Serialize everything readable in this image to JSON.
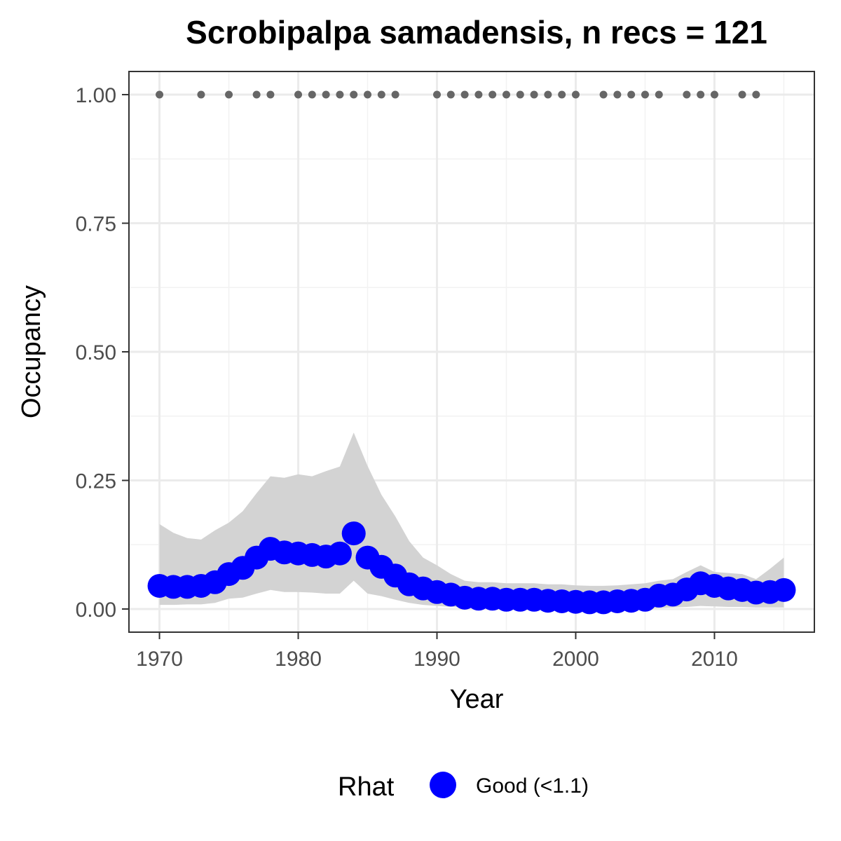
{
  "chart_data": {
    "type": "line",
    "title": "Scrobipalpa samadensis, n recs = 121",
    "xlabel": "Year",
    "ylabel": "Occupancy",
    "xlim": [
      1967.8,
      2017.2
    ],
    "ylim": [
      -0.045,
      1.045
    ],
    "x_ticks": [
      1970,
      1980,
      1990,
      2000,
      2010
    ],
    "x_tick_labels": [
      "1970",
      "1980",
      "1990",
      "2000",
      "2010"
    ],
    "y_ticks": [
      0,
      0.25,
      0.5,
      0.75,
      1.0
    ],
    "y_tick_labels": [
      "0.00",
      "0.25",
      "0.50",
      "0.75",
      "1.00"
    ],
    "y_minor_ticks": [
      0.125,
      0.375,
      0.625,
      0.875
    ],
    "x_minor_ticks": [
      1975,
      1985,
      1995,
      2005,
      2015
    ],
    "grid": true,
    "legend": {
      "title": "Rhat",
      "placement": "bottom",
      "entries": [
        {
          "label": "Good (<1.1)",
          "color": "#0000ff"
        }
      ]
    },
    "series": [
      {
        "name": "Good (<1.1)",
        "color": "#0000ff",
        "x": [
          1970,
          1971,
          1972,
          1973,
          1974,
          1975,
          1976,
          1977,
          1978,
          1979,
          1980,
          1981,
          1982,
          1983,
          1984,
          1985,
          1986,
          1987,
          1988,
          1989,
          1990,
          1991,
          1992,
          1993,
          1994,
          1995,
          1996,
          1997,
          1998,
          1999,
          2000,
          2001,
          2002,
          2003,
          2004,
          2005,
          2006,
          2007,
          2008,
          2009,
          2010,
          2011,
          2012,
          2013,
          2014,
          2015
        ],
        "y": [
          0.045,
          0.043,
          0.043,
          0.045,
          0.052,
          0.068,
          0.08,
          0.1,
          0.117,
          0.11,
          0.108,
          0.105,
          0.102,
          0.108,
          0.147,
          0.1,
          0.082,
          0.065,
          0.048,
          0.04,
          0.033,
          0.028,
          0.022,
          0.02,
          0.02,
          0.018,
          0.018,
          0.018,
          0.016,
          0.015,
          0.014,
          0.013,
          0.013,
          0.015,
          0.016,
          0.018,
          0.026,
          0.028,
          0.038,
          0.05,
          0.045,
          0.04,
          0.037,
          0.032,
          0.033,
          0.037
        ],
        "lower": [
          0.008,
          0.008,
          0.009,
          0.009,
          0.012,
          0.02,
          0.022,
          0.03,
          0.037,
          0.033,
          0.033,
          0.032,
          0.03,
          0.03,
          0.055,
          0.03,
          0.025,
          0.018,
          0.012,
          0.008,
          0.006,
          0.004,
          0.003,
          0.002,
          0.002,
          0.002,
          0.002,
          0.002,
          0.001,
          0.001,
          0.001,
          0.001,
          0.001,
          0.001,
          0.001,
          0.001,
          0.002,
          0.003,
          0.004,
          0.006,
          0.005,
          0.004,
          0.004,
          0.003,
          0.003,
          0.003
        ],
        "upper": [
          0.165,
          0.148,
          0.138,
          0.135,
          0.153,
          0.168,
          0.19,
          0.225,
          0.258,
          0.255,
          0.262,
          0.258,
          0.268,
          0.277,
          0.343,
          0.278,
          0.222,
          0.18,
          0.132,
          0.1,
          0.085,
          0.068,
          0.055,
          0.052,
          0.052,
          0.05,
          0.05,
          0.05,
          0.048,
          0.048,
          0.046,
          0.045,
          0.045,
          0.046,
          0.048,
          0.05,
          0.055,
          0.058,
          0.072,
          0.085,
          0.072,
          0.07,
          0.068,
          0.058,
          0.078,
          0.1
        ]
      }
    ],
    "record_years": {
      "y_value": 1.0,
      "color": "#666666",
      "x": [
        1970,
        1973,
        1975,
        1977,
        1978,
        1980,
        1981,
        1982,
        1983,
        1984,
        1985,
        1986,
        1987,
        1990,
        1991,
        1992,
        1993,
        1994,
        1995,
        1996,
        1997,
        1998,
        1999,
        2000,
        2002,
        2003,
        2004,
        2005,
        2006,
        2008,
        2009,
        2010,
        2012,
        2013
      ]
    }
  }
}
